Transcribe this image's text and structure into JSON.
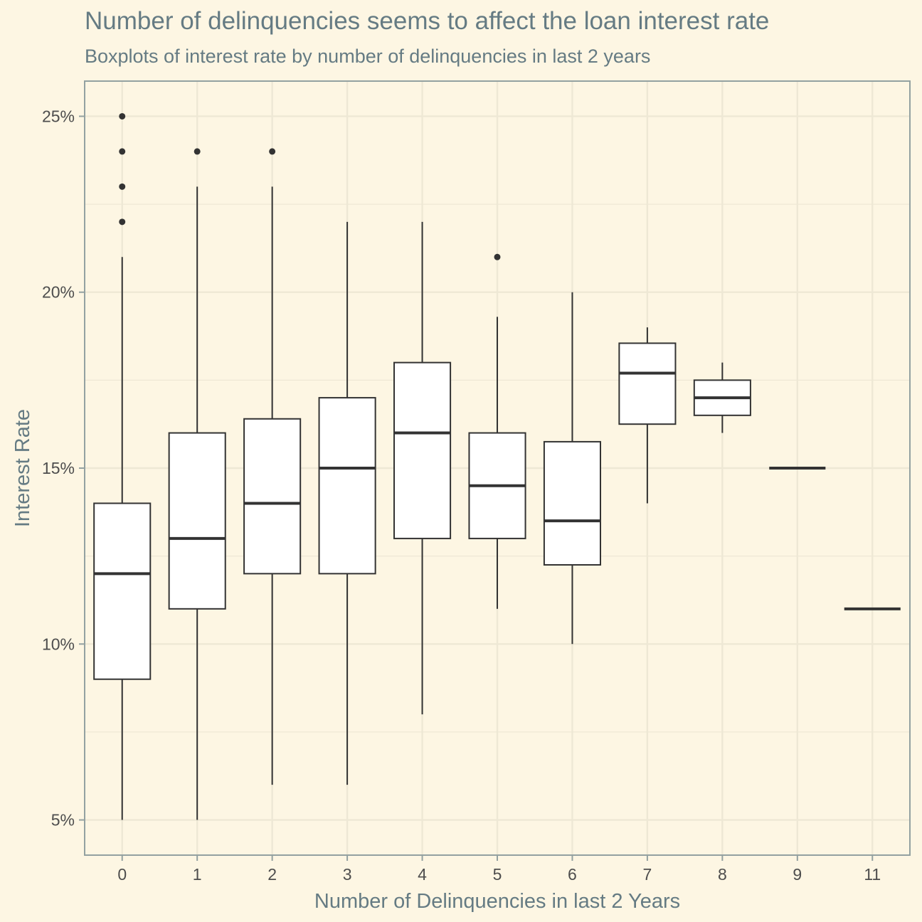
{
  "chart_data": {
    "type": "boxplot",
    "title": "Number of delinquencies seems to affect the loan interest rate",
    "subtitle": "Boxplots of interest rate by number of delinquencies in last 2 years",
    "xlabel": "Number of Delinquencies in last 2 Years",
    "ylabel": "Interest Rate",
    "categories": [
      "0",
      "1",
      "2",
      "3",
      "4",
      "5",
      "6",
      "7",
      "8",
      "9",
      "11"
    ],
    "ylim": [
      4.0,
      26.0
    ],
    "yticks": [
      5,
      10,
      15,
      20,
      25
    ],
    "ytick_labels": [
      "5%",
      "10%",
      "15%",
      "20%",
      "25%"
    ],
    "grid": true,
    "boxes": [
      {
        "category": "0",
        "whisker_low": 5,
        "q1": 9,
        "median": 12,
        "q3": 14,
        "whisker_high": 21,
        "outliers": [
          22,
          23,
          24,
          25
        ]
      },
      {
        "category": "1",
        "whisker_low": 5,
        "q1": 11,
        "median": 13,
        "q3": 16,
        "whisker_high": 23,
        "outliers": [
          24
        ]
      },
      {
        "category": "2",
        "whisker_low": 6,
        "q1": 12,
        "median": 14,
        "q3": 16.4,
        "whisker_high": 23,
        "outliers": [
          24
        ]
      },
      {
        "category": "3",
        "whisker_low": 6,
        "q1": 12,
        "median": 15,
        "q3": 17,
        "whisker_high": 22,
        "outliers": []
      },
      {
        "category": "4",
        "whisker_low": 8,
        "q1": 13,
        "median": 16,
        "q3": 18,
        "whisker_high": 22,
        "outliers": []
      },
      {
        "category": "5",
        "whisker_low": 11,
        "q1": 13,
        "median": 14.5,
        "q3": 16,
        "whisker_high": 19.3,
        "outliers": [
          21
        ]
      },
      {
        "category": "6",
        "whisker_low": 10,
        "q1": 12.25,
        "median": 13.5,
        "q3": 15.75,
        "whisker_high": 20,
        "outliers": []
      },
      {
        "category": "7",
        "whisker_low": 14,
        "q1": 16.25,
        "median": 17.7,
        "q3": 18.55,
        "whisker_high": 19,
        "outliers": []
      },
      {
        "category": "8",
        "whisker_low": 16,
        "q1": 16.5,
        "median": 17,
        "q3": 17.5,
        "whisker_high": 18,
        "outliers": []
      },
      {
        "category": "9",
        "whisker_low": 15,
        "q1": 15,
        "median": 15,
        "q3": 15,
        "whisker_high": 15,
        "outliers": []
      },
      {
        "category": "11",
        "whisker_low": 11,
        "q1": 11,
        "median": 11,
        "q3": 11,
        "whisker_high": 11,
        "outliers": []
      }
    ],
    "colors": {
      "background": "#fdf6e3",
      "grid": "#eee8d5",
      "panel_border": "#93a1a1",
      "box_fill": "#ffffff",
      "box_line": "#333333",
      "title": "#657b83",
      "tick_text": "#4d4d4d"
    }
  }
}
